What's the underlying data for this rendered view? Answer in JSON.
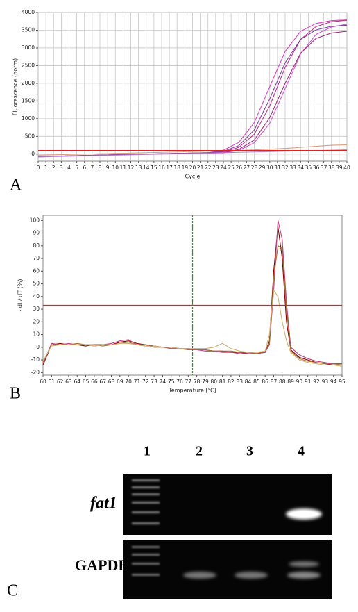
{
  "chart_data": [
    {
      "type": "line",
      "y_label": "Fluorescence (norm)",
      "x_label": "Cycle",
      "x": [
        0,
        2,
        4,
        6,
        8,
        10,
        12,
        14,
        16,
        18,
        20,
        22,
        24,
        26,
        28,
        30,
        32,
        34,
        36,
        38,
        40
      ],
      "series": [
        {
          "color": "#e040c0",
          "values": [
            -60,
            -60,
            -50,
            -40,
            -30,
            -20,
            -10,
            0,
            10,
            20,
            30,
            40,
            110,
            330,
            890,
            1900,
            2900,
            3470,
            3690,
            3770,
            3790
          ]
        },
        {
          "color": "#c03090",
          "values": [
            -60,
            -60,
            -50,
            -40,
            -30,
            -20,
            -10,
            0,
            10,
            20,
            30,
            40,
            61,
            190,
            560,
            1360,
            2450,
            3240,
            3600,
            3740,
            3780
          ]
        },
        {
          "color": "#d050d0",
          "values": [
            -70,
            -60,
            -50,
            -40,
            -30,
            -20,
            -10,
            0,
            10,
            20,
            25,
            30,
            35,
            105,
            320,
            870,
            1850,
            2830,
            3380,
            3590,
            3670
          ]
        },
        {
          "color": "#a03080",
          "values": [
            -70,
            -60,
            -50,
            -40,
            -30,
            -20,
            -10,
            0,
            10,
            20,
            25,
            30,
            42,
            132,
            397,
            1030,
            2000,
            2850,
            3270,
            3420,
            3470
          ]
        },
        {
          "color": "#8040a0",
          "values": [
            -60,
            -60,
            -50,
            -40,
            -30,
            -20,
            -10,
            0,
            10,
            20,
            30,
            40,
            78,
            240,
            680,
            1560,
            2580,
            3240,
            3510,
            3610,
            3640
          ]
        },
        {
          "color": "#d4a080",
          "values": [
            -30,
            -20,
            -10,
            0,
            10,
            20,
            30,
            40,
            50,
            60,
            70,
            80,
            90,
            100,
            120,
            140,
            160,
            190,
            220,
            250,
            260
          ]
        },
        {
          "color": "#b080c0",
          "values": [
            -80,
            -70,
            -60,
            -50,
            -40,
            -30,
            -20,
            -10,
            0,
            10,
            20,
            30,
            40,
            50,
            60,
            70,
            80,
            90,
            100,
            110,
            120
          ]
        }
      ],
      "threshold": 100,
      "threshold_color": "#e02020",
      "xlim": [
        0,
        40
      ],
      "xticks": [
        0,
        1,
        2,
        3,
        4,
        5,
        6,
        7,
        8,
        9,
        10,
        11,
        12,
        13,
        14,
        15,
        16,
        17,
        18,
        19,
        20,
        21,
        22,
        23,
        24,
        25,
        26,
        27,
        28,
        29,
        30,
        31,
        32,
        33,
        34,
        35,
        36,
        37,
        38,
        39,
        40
      ],
      "ylim": [
        -200,
        4000
      ],
      "yticks": [
        0,
        500,
        1000,
        1500,
        2000,
        2500,
        3000,
        3500,
        4000
      ],
      "grid": true
    },
    {
      "type": "line",
      "y_label": "- dI / dT (%)",
      "x_label": "Temperature [℃]",
      "x": [
        60,
        61,
        62,
        63,
        64,
        65,
        66,
        67,
        68,
        69,
        70,
        71,
        72,
        73,
        74,
        75,
        76,
        77,
        78,
        79,
        80,
        81,
        82,
        83,
        84,
        85,
        86,
        86.5,
        87,
        87.5,
        88,
        88.5,
        89,
        90,
        91,
        92,
        93,
        94,
        95
      ],
      "series": [
        {
          "color": "#8b0000",
          "values": [
            -14,
            2,
            3,
            2,
            2,
            1,
            2,
            2,
            2,
            4,
            5,
            3,
            2,
            1,
            0,
            0,
            -1,
            -1,
            -2,
            -2,
            -3,
            -3,
            -4,
            -4,
            -5,
            -5,
            -4,
            5,
            60,
            95,
            70,
            20,
            -2,
            -8,
            -10,
            -12,
            -13,
            -14,
            -14
          ]
        },
        {
          "color": "#c04080",
          "values": [
            -13,
            3,
            2,
            3,
            2,
            2,
            1,
            2,
            3,
            5,
            6,
            2,
            1,
            1,
            0,
            -1,
            -1,
            -2,
            -2,
            -3,
            -3,
            -4,
            -4,
            -5,
            -5,
            -5,
            -4,
            2,
            45,
            100,
            85,
            35,
            0,
            -6,
            -9,
            -11,
            -12,
            -13,
            -13
          ]
        },
        {
          "color": "#a07030",
          "values": [
            -12,
            2,
            2,
            2,
            3,
            2,
            2,
            1,
            2,
            3,
            4,
            2,
            2,
            0,
            0,
            0,
            -1,
            -2,
            -2,
            -2,
            -3,
            -3,
            -3,
            -4,
            -4,
            -5,
            -3,
            3,
            55,
            80,
            78,
            30,
            -3,
            -9,
            -11,
            -12,
            -13,
            -13,
            -14
          ]
        },
        {
          "color": "#d0b070",
          "values": [
            -11,
            1,
            2,
            2,
            2,
            2,
            1,
            2,
            2,
            3,
            3,
            2,
            1,
            1,
            0,
            0,
            -1,
            -1,
            -1,
            -1,
            0,
            3,
            -1,
            -3,
            -4,
            -4,
            -3,
            10,
            45,
            40,
            20,
            5,
            -4,
            -10,
            -12,
            -13,
            -14,
            -14,
            -15
          ]
        }
      ],
      "threshold": 33,
      "threshold_color": "#e02020",
      "marker_x": 77.5,
      "marker_color": "#20a020",
      "xlim": [
        60,
        95
      ],
      "xticks": [
        60,
        61,
        62,
        63,
        64,
        65,
        66,
        67,
        68,
        69,
        70,
        71,
        72,
        73,
        74,
        75,
        76,
        77,
        78,
        79,
        80,
        81,
        82,
        83,
        84,
        85,
        86,
        87,
        88,
        89,
        90,
        91,
        92,
        93,
        94,
        95
      ],
      "ylim": [
        -22,
        104
      ],
      "yticks": [
        -20,
        -10,
        0,
        10,
        20,
        30,
        40,
        50,
        60,
        70,
        80,
        90,
        100
      ],
      "grid": false
    }
  ],
  "panel_labels": [
    "A",
    "B",
    "C"
  ],
  "gel": {
    "lanes": [
      "1",
      "2",
      "3",
      "4"
    ],
    "rows": [
      "fat1",
      "GAPDH"
    ]
  }
}
